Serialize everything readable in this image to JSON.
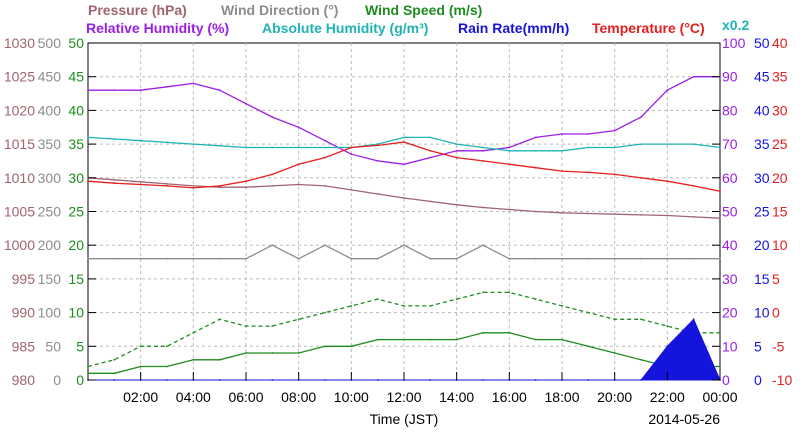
{
  "chart_data": {
    "type": "line",
    "date": "2014-05-26",
    "xlabel": "Time (JST)",
    "xticks": [
      "02:00",
      "04:00",
      "06:00",
      "08:00",
      "10:00",
      "12:00",
      "14:00",
      "16:00",
      "18:00",
      "20:00",
      "22:00",
      "00:00"
    ],
    "xlim_hours": [
      0,
      24
    ],
    "x_hours": [
      0,
      1,
      2,
      3,
      4,
      5,
      6,
      7,
      8,
      9,
      10,
      11,
      12,
      13,
      14,
      15,
      16,
      17,
      18,
      19,
      20,
      21,
      22,
      23,
      24
    ],
    "axes": [
      {
        "key": "pressure",
        "title": "Pressure (hPa)",
        "color": "#a0646e",
        "ticks": [
          "980",
          "985",
          "990",
          "995",
          "1000",
          "1005",
          "1010",
          "1015",
          "1020",
          "1025",
          "1030"
        ],
        "ylim": [
          980,
          1030
        ]
      },
      {
        "key": "wind_direction",
        "title": "Wind Direction (°)",
        "color": "#8c8c8c",
        "ticks": [
          "0",
          "50",
          "100",
          "150",
          "200",
          "250",
          "300",
          "350",
          "400",
          "450",
          "500"
        ],
        "ylim": [
          0,
          500
        ]
      },
      {
        "key": "wind_speed",
        "title": "Wind Speed (m/s)",
        "color": "#1e8c1e",
        "ticks": [
          "0",
          "5",
          "10",
          "15",
          "20",
          "25",
          "30",
          "35",
          "40",
          "45",
          "50"
        ],
        "ylim": [
          0,
          50
        ]
      },
      {
        "key": "humidity",
        "title": "Relative Humidity (%)",
        "title2": "Absolute Humidity (g/m³)",
        "color": "#9b1ee6",
        "color2": "#1eb4b4",
        "ticks": [
          "0",
          "10",
          "20",
          "30",
          "40",
          "50",
          "60",
          "70",
          "80",
          "90",
          "100"
        ],
        "ylim": [
          0,
          100
        ],
        "abs_scale": "x0.2"
      },
      {
        "key": "rain_rate",
        "title": "Rain Rate(mm/h)",
        "color": "#1414dc",
        "ticks": [
          "0",
          "5",
          "10",
          "15",
          "20",
          "25",
          "30",
          "35",
          "40",
          "45",
          "50"
        ],
        "ylim": [
          0,
          50
        ]
      },
      {
        "key": "temperature",
        "title": "Temperature (°C)",
        "color": "#e61e1e",
        "ticks": [
          "-10",
          "-5",
          "0",
          "5",
          "10",
          "15",
          "20",
          "25",
          "30",
          "35",
          "40"
        ],
        "ylim": [
          -10,
          40
        ]
      }
    ],
    "series": [
      {
        "name": "Pressure",
        "axis": "pressure",
        "color": "#a0646e",
        "style": "solid",
        "values": [
          1010,
          1009.7,
          1009.4,
          1009.1,
          1008.8,
          1008.6,
          1008.6,
          1008.8,
          1009,
          1008.8,
          1008.2,
          1007.6,
          1007,
          1006.5,
          1006,
          1005.6,
          1005.3,
          1005,
          1004.8,
          1004.7,
          1004.6,
          1004.5,
          1004.4,
          1004.2,
          1004
        ]
      },
      {
        "name": "Wind Direction",
        "axis": "wind_direction",
        "color": "#8c8c8c",
        "style": "solid",
        "values": [
          180,
          180,
          180,
          180,
          180,
          180,
          180,
          200,
          180,
          200,
          180,
          180,
          200,
          180,
          180,
          200,
          180,
          180,
          180,
          180,
          180,
          180,
          180,
          180,
          180
        ]
      },
      {
        "name": "Wind Speed (max)",
        "axis": "wind_speed",
        "color": "#1e8c1e",
        "style": "dashed",
        "values": [
          2,
          3,
          5,
          5,
          7,
          9,
          8,
          8,
          9,
          10,
          11,
          12,
          11,
          11,
          12,
          13,
          13,
          12,
          11,
          10,
          9,
          9,
          8,
          7,
          7
        ]
      },
      {
        "name": "Wind Speed (avg)",
        "axis": "wind_speed",
        "color": "#1e8c1e",
        "style": "solid",
        "values": [
          1,
          1,
          2,
          2,
          3,
          3,
          4,
          4,
          4,
          5,
          5,
          6,
          6,
          6,
          6,
          7,
          7,
          6,
          6,
          5,
          4,
          3,
          2,
          2,
          2
        ]
      },
      {
        "name": "Relative Humidity",
        "axis": "humidity",
        "color": "#9b1ee6",
        "style": "solid",
        "values": [
          86,
          86,
          86,
          87,
          88,
          86,
          82,
          78,
          75,
          71,
          67,
          65,
          64,
          66,
          68,
          68,
          69,
          72,
          73,
          73,
          74,
          78,
          86,
          90,
          90
        ]
      },
      {
        "name": "Absolute Humidity",
        "axis": "humidity",
        "color": "#1eb4b4",
        "style": "solid",
        "values": [
          72,
          71.5,
          71,
          70.5,
          70,
          69.5,
          69,
          69,
          69,
          69,
          69,
          70,
          72,
          72,
          70,
          69,
          68,
          68,
          68,
          69,
          69,
          70,
          70,
          70,
          69
        ]
      },
      {
        "name": "Rain Rate",
        "axis": "rain_rate",
        "color": "#1414dc",
        "style": "fill",
        "values": [
          0,
          0,
          0,
          0,
          0,
          0,
          0,
          0,
          0,
          0,
          0,
          0,
          0,
          0,
          0,
          0,
          0,
          0,
          0,
          0,
          0,
          0,
          5,
          9,
          0
        ]
      },
      {
        "name": "Temperature",
        "axis": "temperature",
        "color": "#e61e1e",
        "style": "solid",
        "values": [
          19.5,
          19.2,
          19,
          18.8,
          18.5,
          18.8,
          19.5,
          20.5,
          22,
          23,
          24.5,
          24.8,
          25.3,
          24,
          23,
          22.5,
          22,
          21.5,
          21,
          20.8,
          20.5,
          20,
          19.5,
          18.8,
          18
        ]
      }
    ]
  }
}
